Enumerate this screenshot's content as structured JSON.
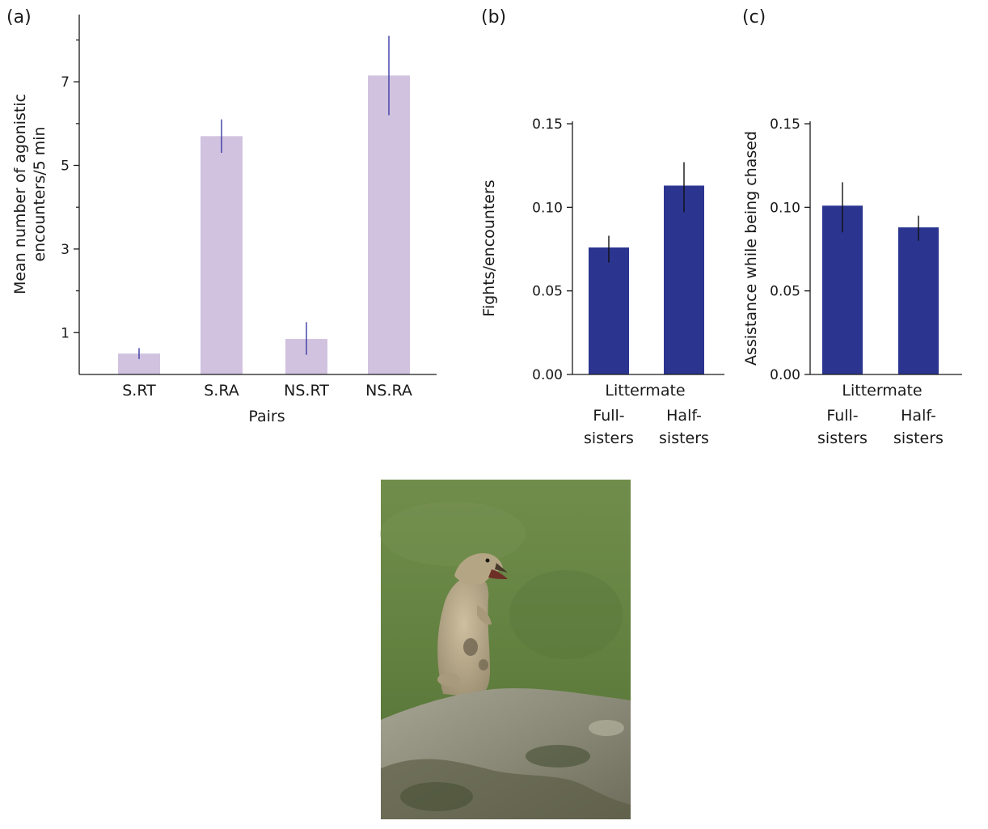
{
  "chart_data": [
    {
      "panel": "(a)",
      "type": "bar",
      "categories": [
        "S.RT",
        "S.RA",
        "NS.RT",
        "NS.RA"
      ],
      "values": [
        0.5,
        5.7,
        0.85,
        7.15
      ],
      "error": [
        [
          0.37,
          0.63
        ],
        [
          5.3,
          6.1
        ],
        [
          0.47,
          1.25
        ],
        [
          6.2,
          8.1
        ]
      ],
      "ylim": [
        0,
        8.5
      ],
      "yticks": [
        "1",
        "3",
        "5",
        "7"
      ],
      "xlabel": "Pairs",
      "ylabel_lines": [
        "Mean number of agonistic",
        "encounters/5 min"
      ],
      "bar_color": "#d1c3df",
      "error_color": "#3a3aa8"
    },
    {
      "panel": "(b)",
      "type": "bar",
      "group_label": "Littermate",
      "categories_lines": [
        [
          "Full-",
          "sisters"
        ],
        [
          "Half-",
          "sisters"
        ]
      ],
      "values": [
        0.076,
        0.113
      ],
      "error": [
        [
          0.067,
          0.083
        ],
        [
          0.097,
          0.127
        ]
      ],
      "ylim": [
        0,
        0.15
      ],
      "yticks": [
        "0.00",
        "0.05",
        "0.10",
        "0.15"
      ],
      "ylabel": "Fights/encounters",
      "bar_color": "#2b3590",
      "error_color": "#111111"
    },
    {
      "panel": "(c)",
      "type": "bar",
      "group_label": "Littermate",
      "categories_lines": [
        [
          "Full-",
          "sisters"
        ],
        [
          "Half-",
          "sisters"
        ]
      ],
      "values": [
        0.101,
        0.088
      ],
      "error": [
        [
          0.085,
          0.115
        ],
        [
          0.08,
          0.095
        ]
      ],
      "ylim": [
        0,
        0.15
      ],
      "yticks": [
        "0.00",
        "0.05",
        "0.10",
        "0.15"
      ],
      "ylabel": "Assistance while being chased",
      "bar_color": "#2b3590",
      "error_color": "#111111"
    }
  ],
  "photo": {
    "subject": "ground-squirrel-calling-on-rock",
    "colors": {
      "sky_top": "#6f8a4a",
      "sky_bottom": "#5a7a3a",
      "rock": "#8a8876",
      "rock_dark": "#3f4a2e",
      "fur": "#b9ab8c",
      "fur_dark": "#6f6450"
    }
  }
}
